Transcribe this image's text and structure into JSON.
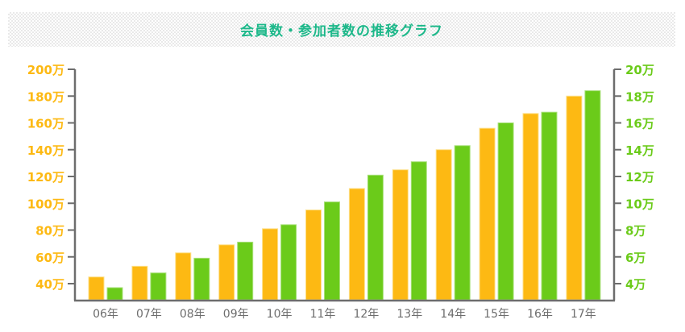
{
  "header": {
    "title": "会員数・参加者数の推移グラフ"
  },
  "colors": {
    "title": "#1db88a",
    "left_series": "#fdb913",
    "right_series": "#6bcb1a",
    "axis": "#6d6d6d",
    "banner_dots": "#e9e9e9"
  },
  "chart_data": {
    "type": "bar",
    "title": "会員数・参加者数の推移グラフ",
    "xlabel": "",
    "categories": [
      "06年",
      "07年",
      "08年",
      "09年",
      "10年",
      "11年",
      "12年",
      "13年",
      "14年",
      "15年",
      "16年",
      "17年"
    ],
    "series": [
      {
        "name": "会員数",
        "axis": "left",
        "unit": "万",
        "color": "#fdb913",
        "values": [
          45,
          53,
          63,
          69,
          81,
          95,
          111,
          125,
          140,
          156,
          167,
          180
        ]
      },
      {
        "name": "参加者数",
        "axis": "right",
        "unit": "万",
        "color": "#6bcb1a",
        "values": [
          3.7,
          4.8,
          5.9,
          7.1,
          8.4,
          10.1,
          12.1,
          13.1,
          14.3,
          16.0,
          16.8,
          18.4
        ]
      }
    ],
    "y_left": {
      "ylim": [
        27,
        200
      ],
      "ticks": [
        40,
        60,
        80,
        100,
        120,
        140,
        160,
        180,
        200
      ],
      "tick_labels": [
        "40万",
        "60万",
        "80万",
        "100万",
        "120万",
        "140万",
        "160万",
        "180万",
        "200万"
      ],
      "color": "#fdb913"
    },
    "y_right": {
      "ylim": [
        2.7,
        20
      ],
      "ticks": [
        4,
        6,
        8,
        10,
        12,
        14,
        16,
        18,
        20
      ],
      "tick_labels": [
        "4万",
        "6万",
        "8万",
        "10万",
        "12万",
        "14万",
        "16万",
        "18万",
        "20万"
      ],
      "color": "#6bcb1a"
    },
    "grid": false,
    "legend": "none"
  }
}
